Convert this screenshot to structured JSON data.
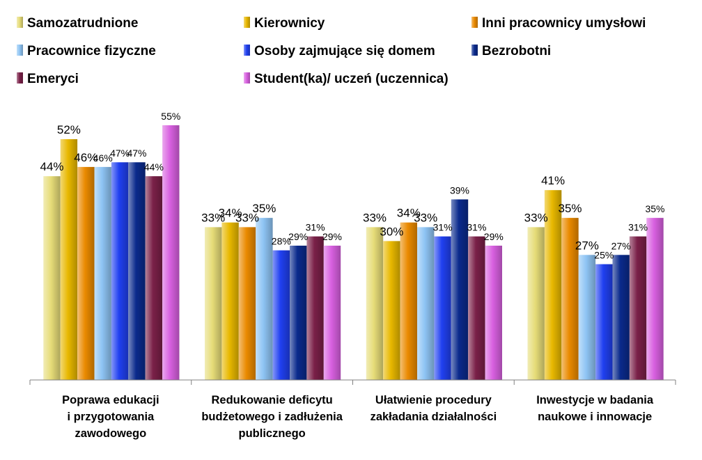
{
  "chart_data": {
    "type": "bar",
    "title": "",
    "xlabel": "",
    "ylabel": "",
    "ylim": [
      0,
      55
    ],
    "grid": false,
    "legend_position": "top",
    "categories": [
      [
        "Poprawa edukacji",
        "i przygotowania",
        "zawodowego"
      ],
      [
        "Redukowanie deficytu",
        "budżetowego i zadłużenia",
        "publicznego"
      ],
      [
        "Ułatwienie procedury",
        "zakładania działalności"
      ],
      [
        "Inwestycje w badania",
        "naukowe i innowacje"
      ]
    ],
    "series": [
      {
        "name": "Samozatrudnione",
        "color": "#e6dc78",
        "values": [
          44,
          33,
          33,
          33
        ],
        "labels": [
          "44%",
          "33%",
          "33%",
          "33%"
        ]
      },
      {
        "name": "Kierownicy",
        "color": "#e8b800",
        "values": [
          52,
          34,
          30,
          41
        ],
        "labels": [
          "52%",
          "34%",
          "30%",
          "41%"
        ]
      },
      {
        "name": "Inni pracownicy umysłowi",
        "color": "#ea8a00",
        "values": [
          46,
          33,
          34,
          35
        ],
        "labels": [
          "46%",
          "33%",
          "34%",
          "35%"
        ]
      },
      {
        "name": "Pracownice fizyczne",
        "color": "#8ec4f4",
        "values": [
          46,
          35,
          33,
          27
        ],
        "labels": [
          "46%",
          "35%",
          "33%",
          "27%"
        ]
      },
      {
        "name": "Osoby zajmujące się domem",
        "color": "#2040f0",
        "values": [
          47,
          28,
          31,
          25
        ],
        "labels": [
          "47%",
          "28%",
          "31%",
          "25%"
        ]
      },
      {
        "name": "Bezrobotni",
        "color": "#0a2a8c",
        "values": [
          47,
          29,
          39,
          27
        ],
        "labels": [
          "47%",
          "29%",
          "39%",
          "27%"
        ]
      },
      {
        "name": "Emeryci",
        "color": "#7a2048",
        "values": [
          44,
          31,
          31,
          31
        ],
        "labels": [
          "44%",
          "31%",
          "31%",
          "31%"
        ]
      },
      {
        "name": "Student(ka)/ uczeń (uczennica)",
        "color": "#d860e0",
        "values": [
          55,
          29,
          29,
          35
        ],
        "labels": [
          "55%",
          "29%",
          "29%",
          "35%"
        ]
      }
    ]
  }
}
